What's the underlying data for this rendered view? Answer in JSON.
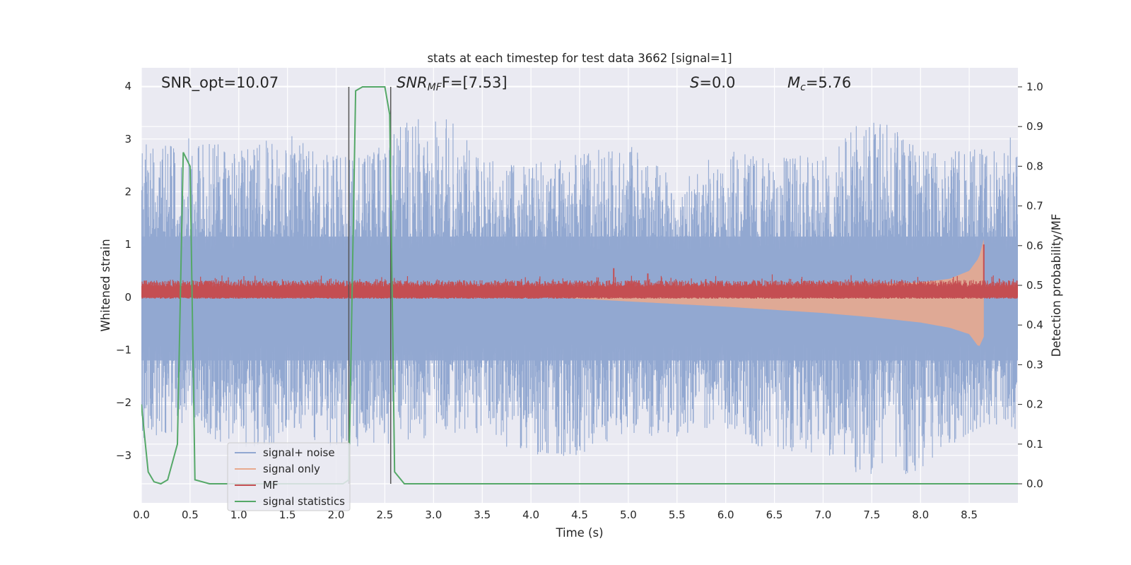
{
  "chart_data": {
    "type": "line",
    "title": "stats at each timestep for test data 3662 [signal=1]",
    "xlabel": "Time (s)",
    "ylabel": "Whitened strain",
    "y2label": "Detection probability/MF",
    "xlim": [
      0.0,
      9.0
    ],
    "ylim": [
      -3.9,
      4.35
    ],
    "y2lim": [
      -0.048,
      1.048
    ],
    "x_ticks": [
      0.0,
      0.5,
      1.0,
      1.5,
      2.0,
      2.5,
      3.0,
      3.5,
      4.0,
      4.5,
      5.0,
      5.5,
      6.0,
      6.5,
      7.0,
      7.5,
      8.0,
      8.5
    ],
    "x_tick_labels": [
      "0.0",
      "0.5",
      "1.0",
      "1.5",
      "2.0",
      "2.5",
      "3.0",
      "3.5",
      "4.0",
      "4.5",
      "5.0",
      "5.5",
      "6.0",
      "6.5",
      "7.0",
      "7.5",
      "8.0",
      "8.5"
    ],
    "y_ticks": [
      -3,
      -2,
      -1,
      0,
      1,
      2,
      3,
      4
    ],
    "y_tick_labels": [
      "−3",
      "−2",
      "−1",
      "0",
      "1",
      "2",
      "3",
      "4"
    ],
    "y2_ticks": [
      0.0,
      0.1,
      0.2,
      0.3,
      0.4,
      0.5,
      0.6,
      0.7,
      0.8,
      0.9,
      1.0
    ],
    "y2_tick_labels": [
      "0.0",
      "0.1",
      "0.2",
      "0.3",
      "0.4",
      "0.5",
      "0.6",
      "0.7",
      "0.8",
      "0.9",
      "1.0"
    ],
    "grid": true,
    "legend_position": "bottom-left",
    "annotations": {
      "snr_opt": "SNR_opt=10.07",
      "snr_mf_var": "SNR",
      "snr_mf_sub": "MF",
      "snr_mf_rest": "F=[7.53]",
      "s_var": "S",
      "s_rest": "=0.0",
      "mc_var": "M",
      "mc_sub": "c",
      "mc_rest": "=5.76"
    },
    "vertical_lines_x": [
      2.13,
      2.56
    ],
    "signal_noise_envelope": {
      "x": [
        0.0,
        0.5,
        1.0,
        1.5,
        2.0,
        2.5,
        3.0,
        3.5,
        4.0,
        4.5,
        5.0,
        5.5,
        6.0,
        6.5,
        7.0,
        7.5,
        8.0,
        8.5,
        9.0
      ],
      "y_max": [
        2.9,
        3.05,
        2.8,
        3.1,
        2.7,
        2.9,
        4.0,
        2.6,
        2.5,
        2.8,
        2.9,
        2.3,
        2.8,
        2.7,
        2.8,
        3.5,
        2.8,
        2.8,
        3.1
      ],
      "y_min": [
        -2.7,
        -2.5,
        -2.9,
        -2.8,
        -2.9,
        -2.8,
        -2.7,
        -2.6,
        -3.1,
        -3.0,
        -2.6,
        -2.7,
        -2.5,
        -3.0,
        -3.0,
        -3.5,
        -3.3,
        -2.6,
        -2.5
      ]
    },
    "signal_only": {
      "x": [
        0.0,
        3.5,
        4.0,
        5.0,
        6.0,
        7.0,
        7.5,
        8.0,
        8.3,
        8.5,
        8.6,
        8.65
      ],
      "y_max": [
        0.12,
        0.13,
        0.14,
        0.16,
        0.18,
        0.21,
        0.24,
        0.28,
        0.35,
        0.5,
        0.75,
        1.1
      ],
      "y_min": [
        0.1,
        0.08,
        0.02,
        -0.08,
        -0.18,
        -0.3,
        -0.38,
        -0.48,
        -0.58,
        -0.7,
        -0.95,
        -0.75
      ]
    },
    "mf_peaks": {
      "x": [
        4.85,
        5.2,
        8.65
      ],
      "y": [
        0.55,
        0.45,
        1.0
      ]
    },
    "series": [
      {
        "name": "signal+ noise",
        "color": "#92a8d1"
      },
      {
        "name": "signal only",
        "color": "#e8a98e"
      },
      {
        "name": "MF",
        "color": "#c44e52"
      },
      {
        "name": "signal statistics",
        "color": "#55a868",
        "axis": "right",
        "x": [
          0.0,
          0.07,
          0.13,
          0.2,
          0.27,
          0.37,
          0.43,
          0.5,
          0.55,
          0.7,
          2.0,
          2.07,
          2.13,
          2.2,
          2.27,
          2.35,
          2.5,
          2.55,
          2.6,
          2.7,
          9.0
        ],
        "values": [
          0.2,
          0.03,
          0.005,
          0.0,
          0.01,
          0.1,
          0.835,
          0.8,
          0.01,
          0.0,
          0.0,
          0.0,
          0.01,
          0.99,
          1.0,
          1.0,
          1.0,
          0.93,
          0.03,
          0.0,
          0.0
        ]
      }
    ]
  }
}
